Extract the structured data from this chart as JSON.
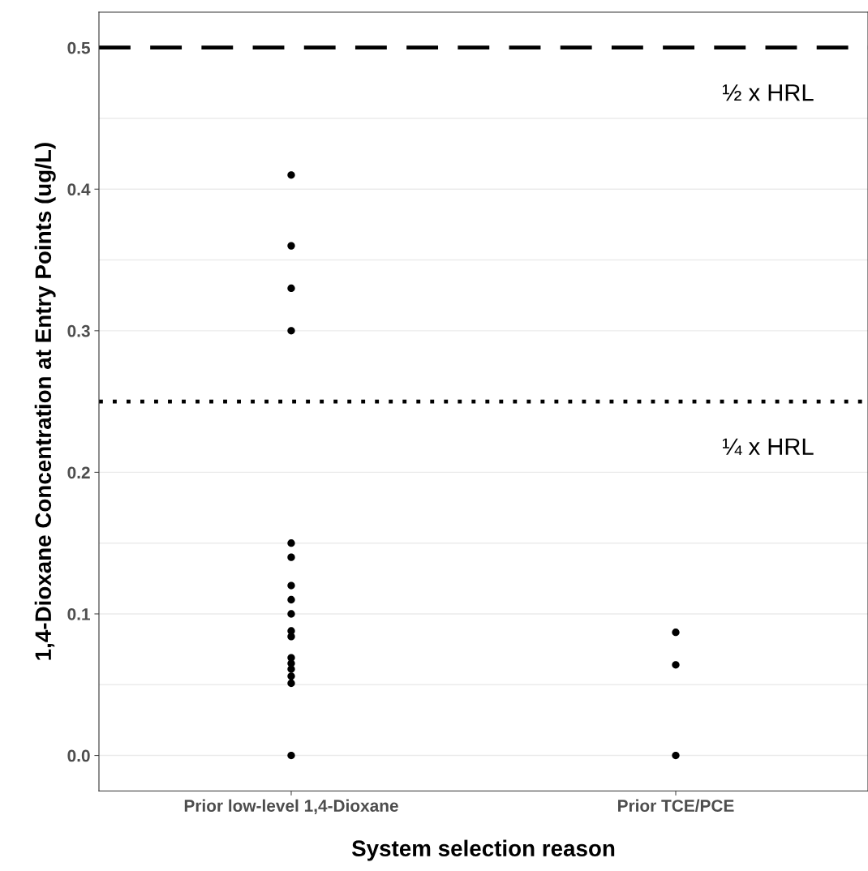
{
  "chart_data": {
    "type": "scatter",
    "xlabel": "System selection reason",
    "ylabel": "1,4-Dioxane Concentration at Entry Points (ug/L)",
    "categories": [
      "Prior low-level 1,4-Dioxane",
      "Prior TCE/PCE"
    ],
    "series": [
      {
        "color": "#000000",
        "x": [
          "Prior low-level 1,4-Dioxane",
          "Prior low-level 1,4-Dioxane",
          "Prior low-level 1,4-Dioxane",
          "Prior low-level 1,4-Dioxane",
          "Prior low-level 1,4-Dioxane",
          "Prior low-level 1,4-Dioxane",
          "Prior low-level 1,4-Dioxane",
          "Prior low-level 1,4-Dioxane",
          "Prior low-level 1,4-Dioxane",
          "Prior low-level 1,4-Dioxane",
          "Prior low-level 1,4-Dioxane",
          "Prior low-level 1,4-Dioxane",
          "Prior low-level 1,4-Dioxane",
          "Prior low-level 1,4-Dioxane",
          "Prior low-level 1,4-Dioxane",
          "Prior low-level 1,4-Dioxane",
          "Prior low-level 1,4-Dioxane",
          "Prior TCE/PCE",
          "Prior TCE/PCE",
          "Prior TCE/PCE"
        ],
        "values": [
          0.41,
          0.36,
          0.33,
          0.3,
          0.15,
          0.14,
          0.12,
          0.11,
          0.1,
          0.088,
          0.084,
          0.069,
          0.065,
          0.061,
          0.056,
          0.051,
          0.0,
          0.087,
          0.064,
          0.0
        ]
      }
    ],
    "ylim": [
      -0.025,
      0.525
    ],
    "yticks": [
      {
        "value": 0,
        "label": "0.0"
      },
      {
        "value": 0.05,
        "label": null
      },
      0.1,
      {
        "value": 0.15,
        "label": null
      },
      0.2,
      0.3,
      {
        "value": 0.35,
        "label": null
      },
      0.4,
      {
        "value": 0.45,
        "label": null
      },
      0.5
    ],
    "grid": "y",
    "marker": "circle",
    "ref_lines": [
      {
        "axis": "y",
        "value": 0.5,
        "label": "½ x HRL",
        "color": "#000000",
        "line_style": "dashed"
      },
      {
        "axis": "y",
        "value": 0.25,
        "label": "¼ x HRL",
        "color": "#000000",
        "line_style": "dotted"
      }
    ]
  }
}
